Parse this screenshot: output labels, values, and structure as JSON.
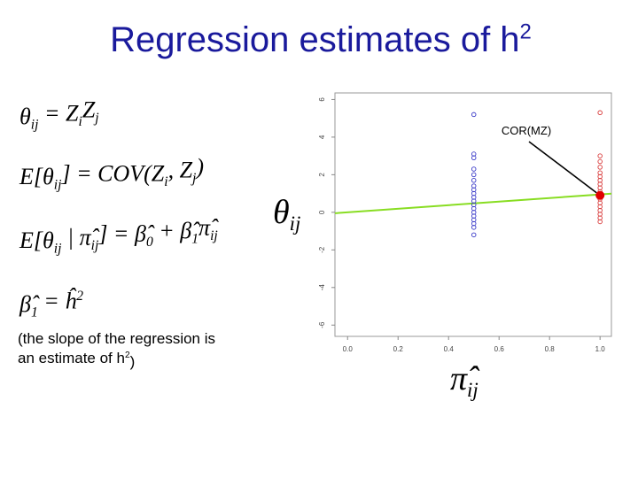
{
  "title": [
    {
      "text": "Regression estimates of h"
    },
    {
      "sup": "2"
    }
  ],
  "equations": [
    [
      {
        "text": "θ"
      },
      {
        "sub": "ij"
      },
      {
        "text": " = Z"
      },
      {
        "sub": "i"
      },
      {
        "text": "Z"
      },
      {
        "sub": "j"
      }
    ],
    [
      {
        "text": "E[θ"
      },
      {
        "sub": "ij"
      },
      {
        "text": "] = COV(Z"
      },
      {
        "sub": "i"
      },
      {
        "text": ", Z"
      },
      {
        "sub": "j"
      },
      {
        "text": ")"
      }
    ],
    [
      {
        "text": "E[θ"
      },
      {
        "sub": "ij"
      },
      {
        "text": " | π̂"
      },
      {
        "sub": "ij"
      },
      {
        "text": "] = β̂"
      },
      {
        "sub": "0"
      },
      {
        "text": " + β̂"
      },
      {
        "sub": "1"
      },
      {
        "text": "π̂"
      },
      {
        "sub": "ij"
      }
    ],
    [
      {
        "text": "β̂"
      },
      {
        "sub": "1"
      },
      {
        "text": " = ĥ"
      },
      {
        "sup": "2"
      }
    ]
  ],
  "note": [
    [
      {
        "text": "(the slope of the regression is"
      }
    ],
    [
      {
        "text": "an estimate of h"
      },
      {
        "sup": "2"
      },
      {
        "text": ")"
      }
    ]
  ],
  "chart_data": {
    "type": "scatter",
    "y_label": [
      {
        "text": "θ"
      },
      {
        "sub": "ij"
      }
    ],
    "x_label": [
      {
        "text": "π̂"
      },
      {
        "sub": "ij"
      }
    ],
    "xlim": [
      -0.05,
      1.045
    ],
    "xticks": [
      {
        "value": 0,
        "label": "0.0"
      },
      {
        "value": 0.2,
        "label": "0.2"
      },
      {
        "value": 0.4,
        "label": "0.4"
      },
      {
        "value": 0.6,
        "label": "0.6"
      },
      {
        "value": 0.8,
        "label": "0.8"
      },
      {
        "value": 1,
        "label": "1.0"
      }
    ],
    "ylim": [
      -6.6,
      6.35
    ],
    "yticks": [
      -6,
      -4,
      -2,
      0,
      2,
      4,
      6
    ],
    "series": [
      {
        "color": "#3a3ac8",
        "x": [
          0.5,
          0.5,
          0.5,
          0.5,
          0.5,
          0.5,
          0.5,
          0.5,
          0.5,
          0.5,
          0.5,
          0.5,
          0.5,
          0.5,
          0.5,
          0.5,
          0.5,
          0.5,
          0.5
        ],
        "values": [
          5.2,
          3.1,
          2.9,
          2.3,
          2.0,
          1.7,
          1.4,
          1.2,
          1.0,
          0.8,
          0.6,
          0.4,
          0.2,
          0.0,
          -0.2,
          -0.4,
          -0.6,
          -0.8,
          -1.2
        ]
      },
      {
        "color": "#d83a3a",
        "x": [
          1,
          1,
          1,
          1,
          1,
          1,
          1,
          1,
          1,
          1,
          1,
          1,
          1,
          1,
          1,
          1,
          1,
          1
        ],
        "values": [
          5.3,
          3.0,
          2.7,
          2.4,
          2.1,
          1.9,
          1.7,
          1.5,
          1.3,
          1.1,
          0.9,
          0.7,
          0.5,
          0.3,
          0.1,
          -0.1,
          -0.3,
          -0.5
        ]
      }
    ],
    "fit": {
      "intercept": 0.0,
      "slope": 0.95,
      "color": "#88dd22"
    },
    "highlight": {
      "x": 1,
      "y": 0.9,
      "color": "#e00000"
    },
    "annotation": "COR(MZ)"
  }
}
